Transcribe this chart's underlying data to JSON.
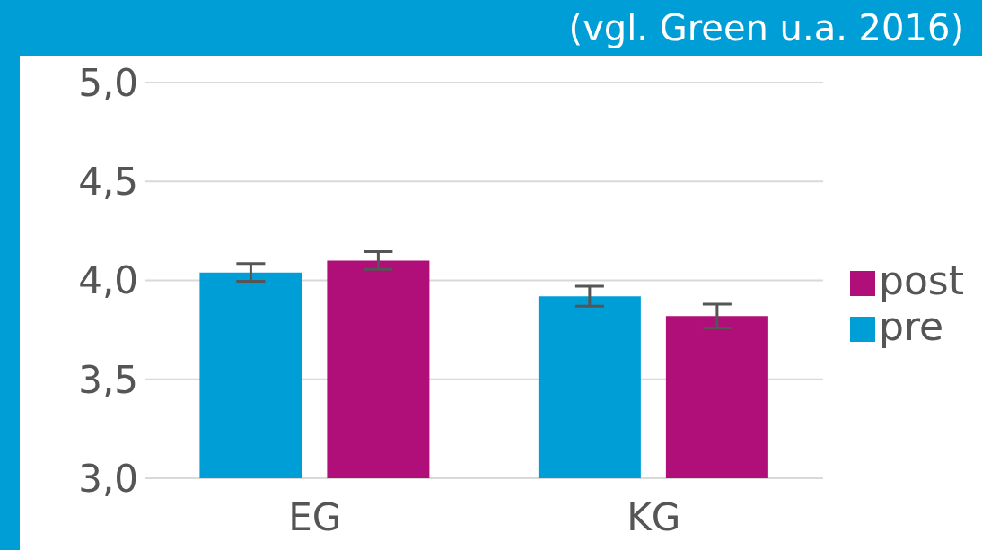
{
  "chart_data": {
    "type": "bar",
    "annotations": [
      "(vgl. Green u.a. 2016)"
    ],
    "categories": [
      "EG",
      "KG"
    ],
    "series": [
      {
        "name": "pre",
        "color": "#009ed6",
        "values": [
          4.04,
          3.92
        ],
        "errors": [
          0.045,
          0.05
        ]
      },
      {
        "name": "post",
        "color": "#b00e78",
        "values": [
          4.1,
          3.82
        ],
        "errors": [
          0.045,
          0.06
        ]
      }
    ],
    "ylim": [
      3,
      5
    ],
    "yticks": [
      {
        "value": 3,
        "label": "3,0"
      },
      {
        "value": 3.5,
        "label": "3,5"
      },
      {
        "value": 4,
        "label": "4,0"
      },
      {
        "value": 4.5,
        "label": "4,5"
      },
      {
        "value": 5,
        "label": "5,0"
      }
    ],
    "grid": "y",
    "legend": "right"
  }
}
